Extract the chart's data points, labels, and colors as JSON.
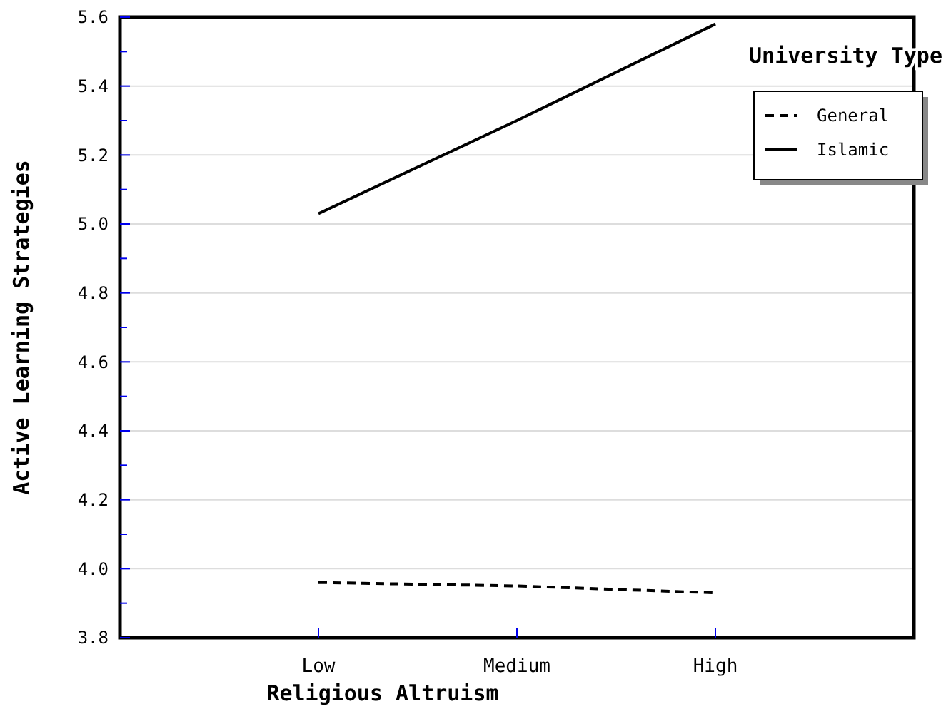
{
  "chart_data": {
    "type": "line",
    "xlabel": "Religious Altruism",
    "ylabel": "Active Learning Strategies",
    "legend_title": "University Type",
    "categories": [
      "Low",
      "Medium",
      "High"
    ],
    "series": [
      {
        "name": "General",
        "color": "#000000",
        "line_style": "dashed",
        "values": [
          3.96,
          3.95,
          3.93
        ]
      },
      {
        "name": "Islamic",
        "color": "#000000",
        "line_style": "solid",
        "values": [
          5.03,
          5.3,
          5.58
        ]
      }
    ],
    "ylim": [
      3.8,
      5.6
    ],
    "yticks": [
      3.8,
      {
        "value": 3.9,
        "label": null
      },
      {
        "value": 4,
        "label": "4.0"
      },
      {
        "value": 4.1,
        "label": null
      },
      4.2,
      {
        "value": 4.3,
        "label": null
      },
      4.4,
      {
        "value": 4.5,
        "label": null
      },
      4.6,
      {
        "value": 4.7,
        "label": null
      },
      4.8,
      {
        "value": 4.9,
        "label": null
      },
      {
        "value": 5,
        "label": "5.0"
      },
      {
        "value": 5.1,
        "label": null
      },
      5.2,
      {
        "value": 5.3,
        "label": null
      },
      5.4,
      {
        "value": 5.5,
        "label": null
      },
      5.6
    ],
    "grid": "y",
    "legend": "top right"
  }
}
